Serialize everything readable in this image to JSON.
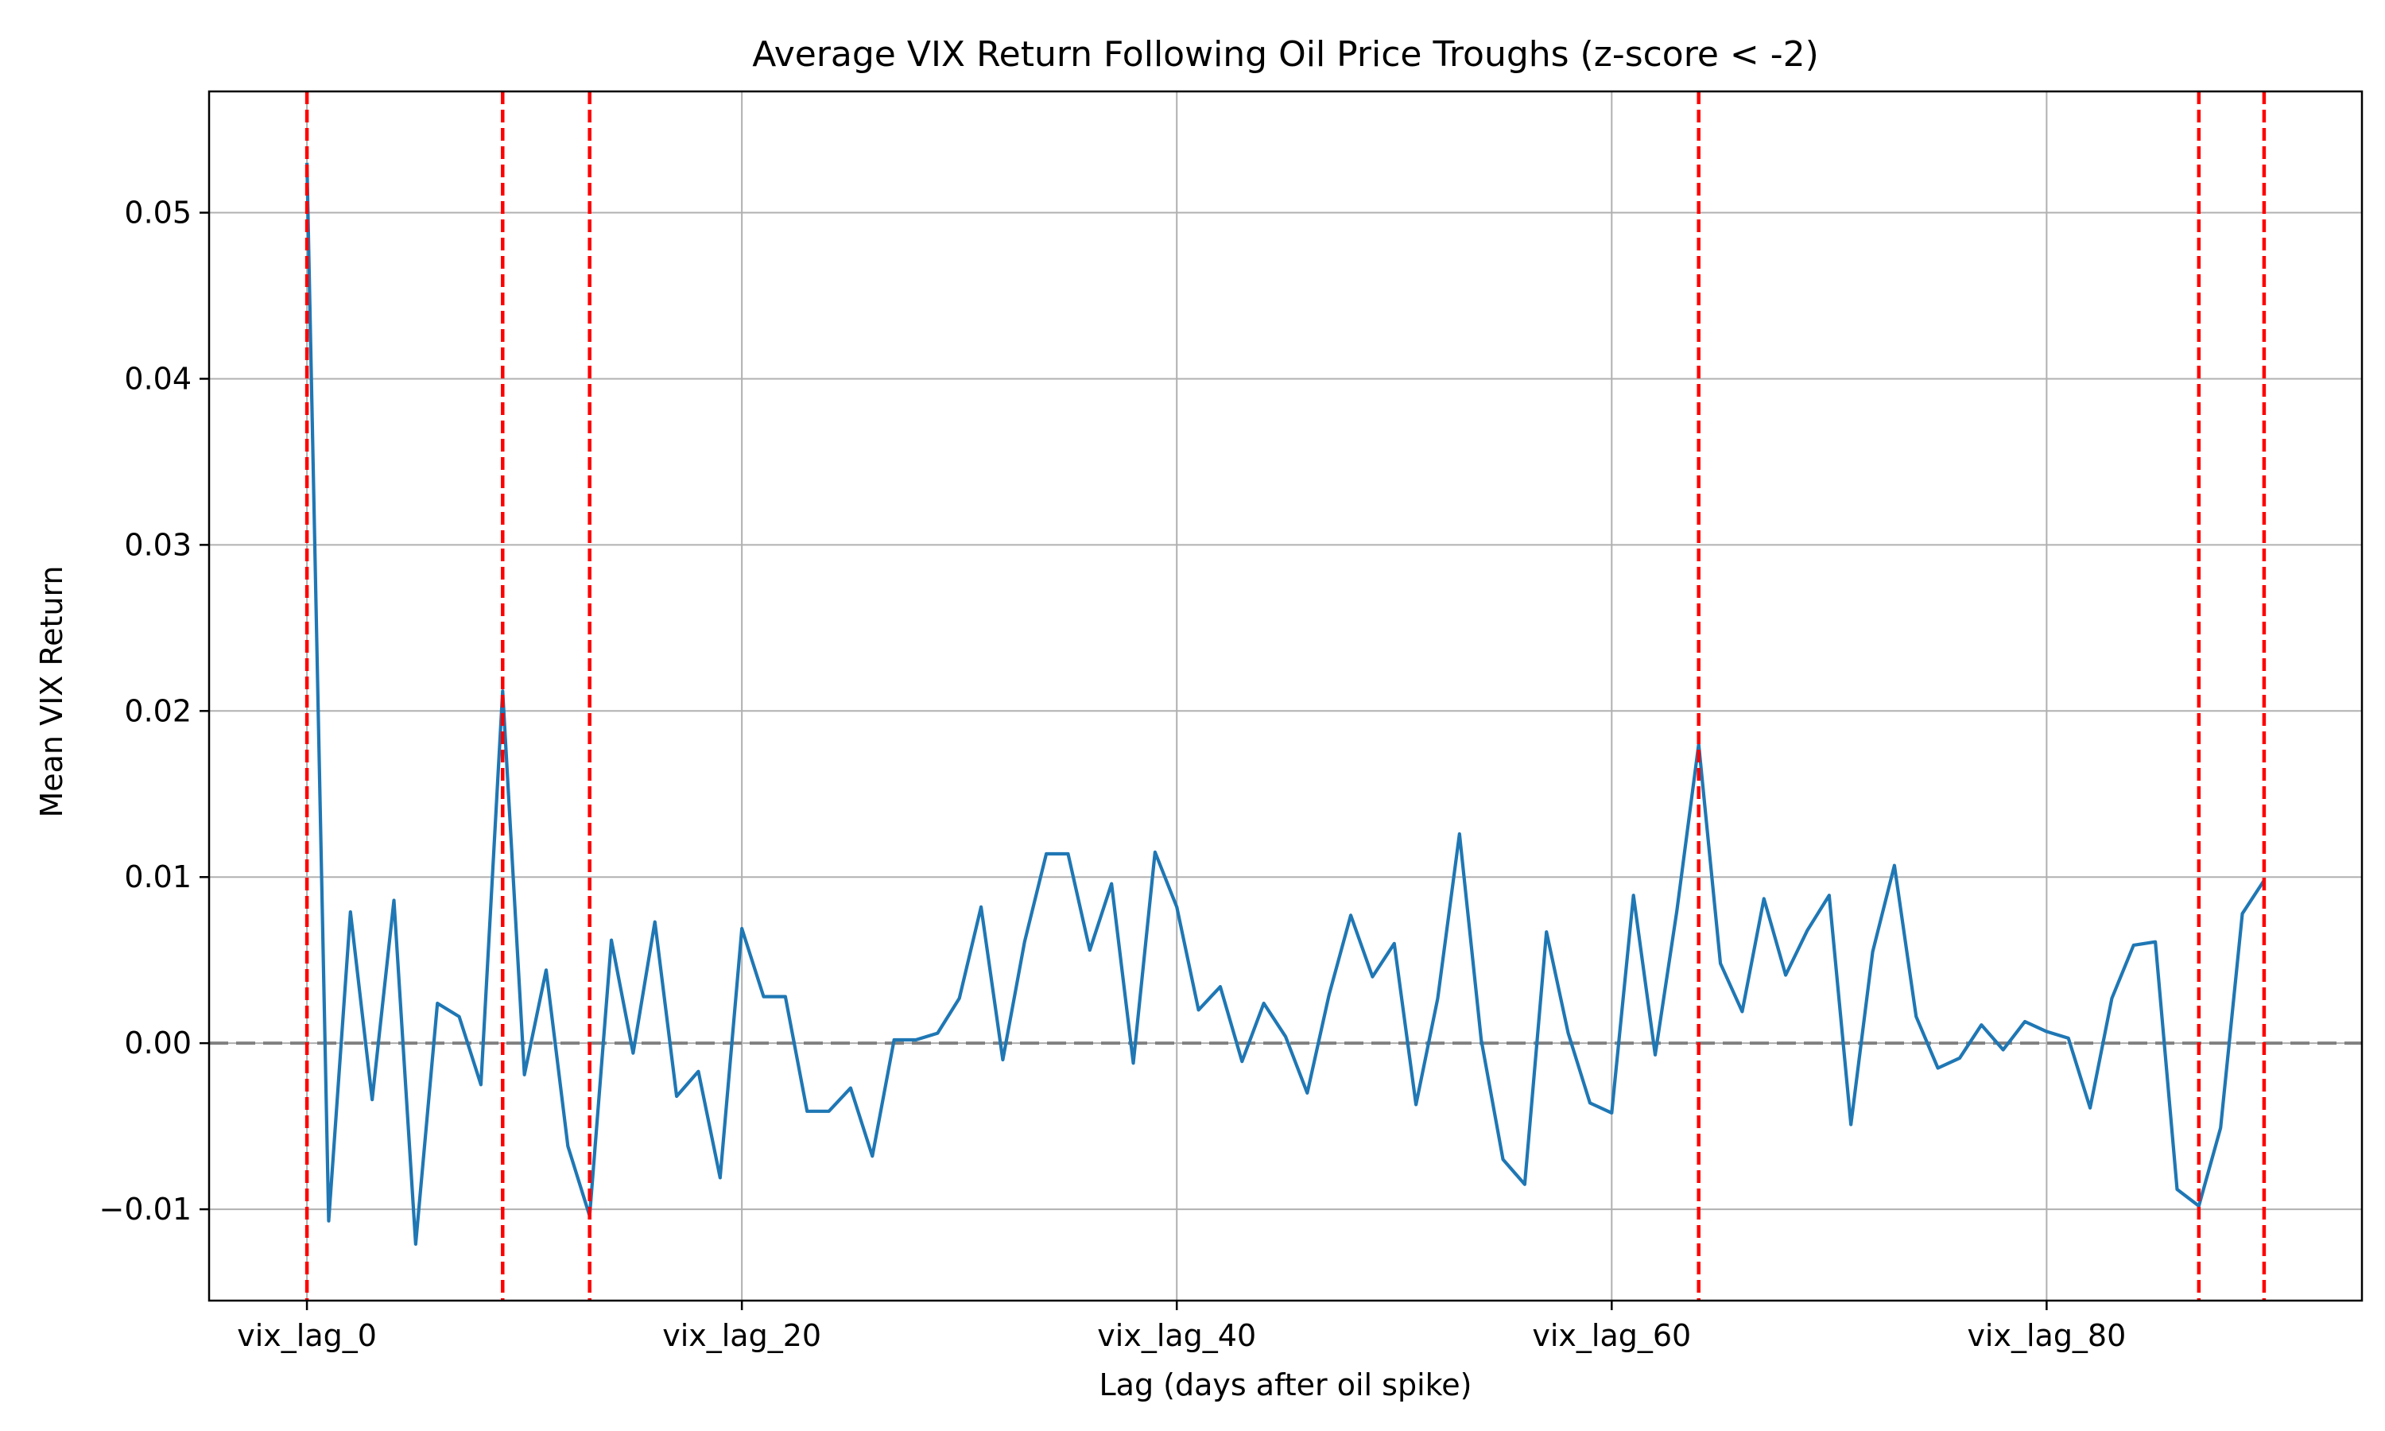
{
  "chart_data": {
    "type": "line",
    "title": "Average VIX Return Following Oil Price Troughs (z-score < -2)",
    "xlabel": "Lag (days after oil spike)",
    "ylabel": "Mean VIX Return",
    "x": [
      0,
      1,
      2,
      3,
      4,
      5,
      6,
      7,
      8,
      9,
      10,
      11,
      12,
      13,
      14,
      15,
      16,
      17,
      18,
      19,
      20,
      21,
      22,
      23,
      24,
      25,
      26,
      27,
      28,
      29,
      30,
      31,
      32,
      33,
      34,
      35,
      36,
      37,
      38,
      39,
      40,
      41,
      42,
      43,
      44,
      45,
      46,
      47,
      48,
      49,
      50,
      51,
      52,
      53,
      54,
      55,
      56,
      57,
      58,
      59,
      60,
      61,
      62,
      63,
      64,
      65,
      66,
      67,
      68,
      69,
      70,
      71,
      72,
      73,
      74,
      75,
      76,
      77,
      78,
      79,
      80,
      81,
      82,
      83,
      84,
      85,
      86,
      87,
      88,
      89,
      90
    ],
    "series": [
      {
        "values": [
          0.053,
          -0.0107,
          0.0079,
          -0.0034,
          0.0086,
          -0.0121,
          0.0024,
          0.0016,
          -0.0025,
          0.0212,
          -0.0019,
          0.0044,
          -0.0062,
          -0.0104,
          0.0062,
          -0.0006,
          0.0073,
          -0.0032,
          -0.0017,
          -0.0081,
          0.0069,
          0.0028,
          0.0028,
          -0.0041,
          -0.0041,
          -0.0027,
          -0.0068,
          0.0002,
          0.0002,
          0.0006,
          0.0027,
          0.0082,
          -0.001,
          0.0061,
          0.0114,
          0.0114,
          0.0056,
          0.0096,
          -0.0012,
          0.0115,
          0.0082,
          0.002,
          0.0034,
          -0.0011,
          0.0024,
          0.0004,
          -0.003,
          0.0029,
          0.0077,
          0.004,
          0.006,
          -0.0037,
          0.0027,
          0.0126,
          0.0002,
          -0.007,
          -0.0085,
          0.0067,
          0.0006,
          -0.0036,
          -0.0042,
          0.0089,
          -0.0007,
          0.008,
          0.018,
          0.0048,
          0.0019,
          0.0087,
          0.0041,
          0.0068,
          0.0089,
          -0.0049,
          0.0055,
          0.0107,
          0.0016,
          -0.0015,
          -0.0009,
          0.0011,
          -0.0004,
          0.0013,
          0.0007,
          0.0003,
          -0.0039,
          0.0027,
          0.0059,
          0.0061,
          -0.0088,
          -0.0098,
          -0.0051,
          0.0078,
          0.0098
        ],
        "color": "#1f77b4"
      }
    ],
    "xticks": [
      {
        "value": 0,
        "label": "vix_lag_0"
      },
      {
        "value": 20,
        "label": "vix_lag_20"
      },
      {
        "value": 40,
        "label": "vix_lag_40"
      },
      {
        "value": 60,
        "label": "vix_lag_60"
      },
      {
        "value": 80,
        "label": "vix_lag_80"
      }
    ],
    "yticks": [
      {
        "value": -0.01,
        "label": "−0.01"
      },
      {
        "value": 0.0,
        "label": "0.00"
      },
      {
        "value": 0.01,
        "label": "0.01"
      },
      {
        "value": 0.02,
        "label": "0.02"
      },
      {
        "value": 0.03,
        "label": "0.03"
      },
      {
        "value": 0.04,
        "label": "0.04"
      },
      {
        "value": 0.05,
        "label": "0.05"
      }
    ],
    "xlim": [
      -4.5,
      94.5
    ],
    "ylim": [
      -0.0155,
      0.0573
    ],
    "grid": true,
    "zero_line": {
      "value": 0.0,
      "color": "#808080",
      "style": "dashed"
    },
    "vertical_markers": {
      "x": [
        0,
        9,
        13,
        64,
        87,
        90
      ],
      "color": "#ff0000",
      "style": "dashed"
    }
  }
}
